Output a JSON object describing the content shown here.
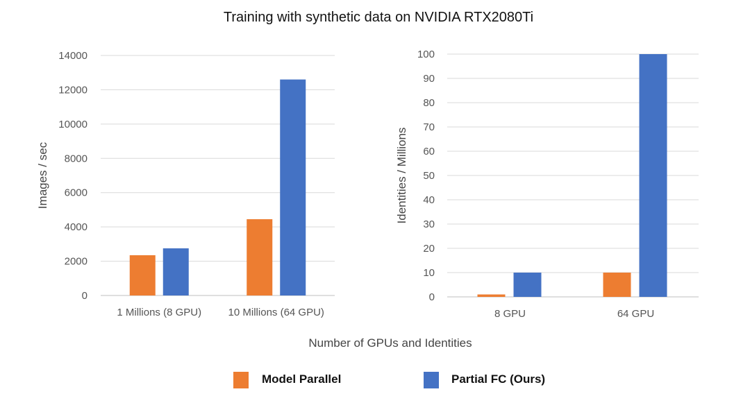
{
  "title": "Training with synthetic data on NVIDIA RTX2080Ti",
  "xlabel": "Number of GPUs and Identities",
  "colors": {
    "model_parallel": "#ED7D31",
    "partial_fc": "#4472C4"
  },
  "legend": [
    {
      "name": "Model Parallel",
      "color": "#ED7D31"
    },
    {
      "name": "Partial FC (Ours)",
      "color": "#4472C4"
    }
  ],
  "chart_data": [
    {
      "type": "bar",
      "ylabel": "Images / sec",
      "ylim": [
        0,
        14000
      ],
      "yticks": [
        "0",
        "2000",
        "4000",
        "6000",
        "8000",
        "10000",
        "12000",
        "14000"
      ],
      "categories": [
        "1 Millions (8 GPU)",
        "10 Millions (64 GPU)"
      ],
      "series": [
        {
          "name": "Model Parallel",
          "values": [
            2350,
            4450
          ]
        },
        {
          "name": "Partial FC (Ours)",
          "values": [
            2750,
            12600
          ]
        }
      ],
      "grid": true
    },
    {
      "type": "bar",
      "ylabel": "Identities / Millions",
      "ylim": [
        0,
        100
      ],
      "yticks": [
        "0",
        "10",
        "20",
        "30",
        "40",
        "50",
        "60",
        "70",
        "80",
        "90",
        "100"
      ],
      "categories": [
        "8 GPU",
        "64 GPU"
      ],
      "series": [
        {
          "name": "Model Parallel",
          "values": [
            1,
            10
          ]
        },
        {
          "name": "Partial FC (Ours)",
          "values": [
            10,
            100
          ]
        }
      ],
      "grid": true
    }
  ]
}
